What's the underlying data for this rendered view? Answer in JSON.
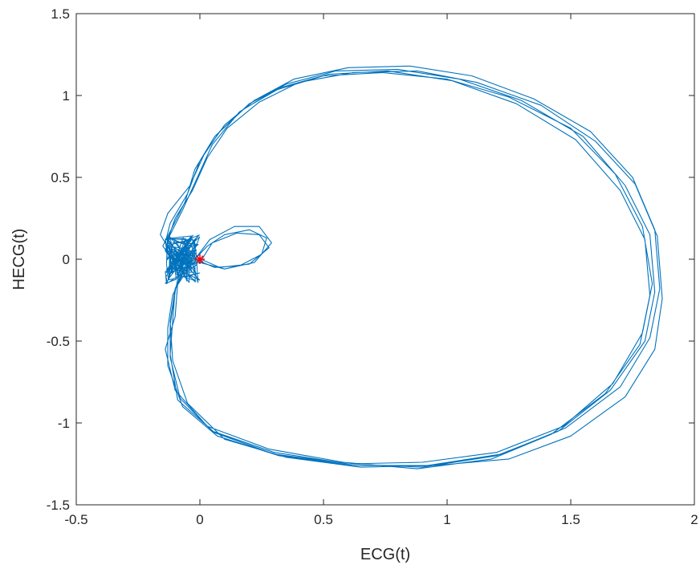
{
  "chart_data": {
    "type": "line",
    "title": "",
    "xlabel": "ECG(t)",
    "ylabel": "HECG(t)",
    "xlim": [
      -0.5,
      2
    ],
    "ylim": [
      -1.5,
      1.5
    ],
    "xticks": [
      -0.5,
      0,
      0.5,
      1,
      1.5,
      2
    ],
    "yticks": [
      -1.5,
      -1,
      -0.5,
      0,
      0.5,
      1,
      1.5
    ],
    "xtick_labels": [
      "-0.5",
      "0",
      "0.5",
      "1",
      "1.5",
      "2"
    ],
    "ytick_labels": [
      "-1.5",
      "-1",
      "-0.5",
      "0",
      "0.5",
      "1",
      "1.5"
    ],
    "grid": false,
    "box": true,
    "series": [
      {
        "color": "#0072BD",
        "loops": [
          [
            [
              -0.02,
              0.0
            ],
            [
              -0.1,
              0.02
            ],
            [
              -0.14,
              0.1
            ],
            [
              -0.12,
              0.22
            ],
            [
              -0.05,
              0.4
            ],
            [
              0.0,
              0.6
            ],
            [
              0.08,
              0.78
            ],
            [
              0.2,
              0.95
            ],
            [
              0.35,
              1.07
            ],
            [
              0.55,
              1.15
            ],
            [
              0.8,
              1.16
            ],
            [
              1.05,
              1.1
            ],
            [
              1.3,
              0.97
            ],
            [
              1.55,
              0.75
            ],
            [
              1.72,
              0.45
            ],
            [
              1.82,
              0.15
            ],
            [
              1.84,
              -0.2
            ],
            [
              1.8,
              -0.5
            ],
            [
              1.66,
              -0.8
            ],
            [
              1.45,
              -1.05
            ],
            [
              1.2,
              -1.2
            ],
            [
              0.9,
              -1.27
            ],
            [
              0.6,
              -1.25
            ],
            [
              0.3,
              -1.18
            ],
            [
              0.05,
              -1.05
            ],
            [
              -0.08,
              -0.85
            ],
            [
              -0.12,
              -0.6
            ],
            [
              -0.12,
              -0.4
            ],
            [
              -0.1,
              -0.2
            ],
            [
              -0.08,
              -0.05
            ]
          ],
          [
            [
              -0.05,
              0.03
            ],
            [
              -0.12,
              0.05
            ],
            [
              -0.16,
              0.15
            ],
            [
              -0.13,
              0.28
            ],
            [
              -0.04,
              0.45
            ],
            [
              0.02,
              0.65
            ],
            [
              0.1,
              0.82
            ],
            [
              0.22,
              0.97
            ],
            [
              0.38,
              1.1
            ],
            [
              0.6,
              1.17
            ],
            [
              0.85,
              1.18
            ],
            [
              1.1,
              1.12
            ],
            [
              1.35,
              0.98
            ],
            [
              1.58,
              0.78
            ],
            [
              1.75,
              0.5
            ],
            [
              1.84,
              0.18
            ],
            [
              1.86,
              -0.18
            ],
            [
              1.82,
              -0.48
            ],
            [
              1.7,
              -0.78
            ],
            [
              1.48,
              -1.03
            ],
            [
              1.22,
              -1.19
            ],
            [
              0.92,
              -1.26
            ],
            [
              0.62,
              -1.26
            ],
            [
              0.32,
              -1.2
            ],
            [
              0.07,
              -1.08
            ],
            [
              -0.07,
              -0.9
            ],
            [
              -0.13,
              -0.65
            ],
            [
              -0.13,
              -0.42
            ],
            [
              -0.11,
              -0.22
            ],
            [
              -0.06,
              -0.06
            ]
          ],
          [
            [
              -0.03,
              -0.02
            ],
            [
              -0.11,
              0.0
            ],
            [
              -0.15,
              0.08
            ],
            [
              -0.11,
              0.2
            ],
            [
              -0.06,
              0.35
            ],
            [
              -0.02,
              0.55
            ],
            [
              0.06,
              0.75
            ],
            [
              0.18,
              0.92
            ],
            [
              0.33,
              1.05
            ],
            [
              0.52,
              1.13
            ],
            [
              0.76,
              1.15
            ],
            [
              1.02,
              1.09
            ],
            [
              1.28,
              0.95
            ],
            [
              1.52,
              0.73
            ],
            [
              1.7,
              0.42
            ],
            [
              1.8,
              0.12
            ],
            [
              1.82,
              -0.22
            ],
            [
              1.78,
              -0.52
            ],
            [
              1.64,
              -0.82
            ],
            [
              1.42,
              -1.07
            ],
            [
              1.18,
              -1.22
            ],
            [
              0.88,
              -1.28
            ],
            [
              0.58,
              -1.24
            ],
            [
              0.28,
              -1.16
            ],
            [
              0.03,
              -1.02
            ],
            [
              -0.1,
              -0.8
            ],
            [
              -0.14,
              -0.55
            ],
            [
              -0.1,
              -0.35
            ],
            [
              -0.09,
              -0.15
            ],
            [
              -0.05,
              -0.03
            ]
          ],
          [
            [
              -0.02,
              0.02
            ],
            [
              -0.09,
              0.04
            ],
            [
              -0.13,
              0.12
            ],
            [
              -0.1,
              0.25
            ],
            [
              -0.03,
              0.42
            ],
            [
              0.03,
              0.62
            ],
            [
              0.11,
              0.8
            ],
            [
              0.24,
              0.96
            ],
            [
              0.4,
              1.08
            ],
            [
              0.62,
              1.14
            ],
            [
              0.88,
              1.15
            ],
            [
              1.12,
              1.08
            ],
            [
              1.38,
              0.94
            ],
            [
              1.6,
              0.72
            ],
            [
              1.76,
              0.46
            ],
            [
              1.85,
              0.14
            ],
            [
              1.87,
              -0.24
            ],
            [
              1.84,
              -0.55
            ],
            [
              1.72,
              -0.84
            ],
            [
              1.5,
              -1.08
            ],
            [
              1.25,
              -1.22
            ],
            [
              0.95,
              -1.26
            ],
            [
              0.65,
              -1.27
            ],
            [
              0.35,
              -1.21
            ],
            [
              0.1,
              -1.1
            ],
            [
              -0.05,
              -0.88
            ],
            [
              -0.11,
              -0.62
            ],
            [
              -0.12,
              -0.38
            ],
            [
              -0.1,
              -0.18
            ],
            [
              -0.04,
              -0.04
            ]
          ],
          [
            [
              -0.04,
              0.0
            ],
            [
              -0.1,
              -0.02
            ],
            [
              -0.14,
              0.05
            ],
            [
              -0.12,
              0.15
            ],
            [
              -0.07,
              0.3
            ],
            [
              -0.01,
              0.5
            ],
            [
              0.05,
              0.7
            ],
            [
              0.16,
              0.9
            ],
            [
              0.3,
              1.03
            ],
            [
              0.5,
              1.12
            ],
            [
              0.74,
              1.14
            ],
            [
              1.0,
              1.1
            ],
            [
              1.25,
              0.99
            ],
            [
              1.5,
              0.8
            ],
            [
              1.68,
              0.52
            ],
            [
              1.79,
              0.2
            ],
            [
              1.83,
              -0.15
            ],
            [
              1.79,
              -0.45
            ],
            [
              1.67,
              -0.76
            ],
            [
              1.47,
              -1.02
            ],
            [
              1.2,
              -1.18
            ],
            [
              0.9,
              -1.24
            ],
            [
              0.6,
              -1.25
            ],
            [
              0.3,
              -1.19
            ],
            [
              0.06,
              -1.06
            ],
            [
              -0.09,
              -0.86
            ],
            [
              -0.12,
              -0.58
            ],
            [
              -0.11,
              -0.38
            ],
            [
              -0.1,
              -0.18
            ],
            [
              -0.06,
              -0.04
            ]
          ]
        ],
        "inner_loop": [
          [
            -0.02,
            0.0
          ],
          [
            0.03,
            0.08
          ],
          [
            0.1,
            0.15
          ],
          [
            0.2,
            0.18
          ],
          [
            0.27,
            0.13
          ],
          [
            0.25,
            0.03
          ],
          [
            0.16,
            -0.04
          ],
          [
            0.06,
            -0.05
          ],
          [
            -0.02,
            0.0
          ],
          [
            0.04,
            0.12
          ],
          [
            0.14,
            0.2
          ],
          [
            0.24,
            0.2
          ],
          [
            0.29,
            0.1
          ],
          [
            0.22,
            -0.02
          ],
          [
            0.1,
            -0.06
          ],
          [
            0.0,
            -0.02
          ],
          [
            0.05,
            0.1
          ],
          [
            0.15,
            0.16
          ],
          [
            0.24,
            0.15
          ],
          [
            0.28,
            0.07
          ],
          [
            0.2,
            -0.03
          ],
          [
            0.08,
            -0.05
          ],
          [
            -0.01,
            0.01
          ]
        ],
        "noise_cluster": {
          "x": [
            -0.14,
            0.0
          ],
          "y": [
            -0.15,
            0.15
          ]
        }
      }
    ],
    "marker": {
      "x": 0,
      "y": 0,
      "symbol": "*",
      "color": "#FF0000"
    }
  }
}
